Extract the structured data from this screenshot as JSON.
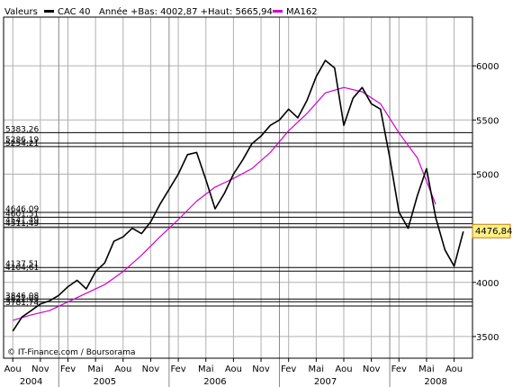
{
  "legend": {
    "prefix": "Valeurs",
    "main": "CAC 40",
    "stats": "Année +Bas: 4002,87 +Haut: 5665,94",
    "ma": "MA162"
  },
  "credit": "© IT-Finance.com / Boursorama",
  "last_value_label": "4476,84",
  "colors": {
    "price": "#000000",
    "ma": "#d000d0",
    "grid": "#b0b0b0",
    "frame": "#000000"
  },
  "chart_data": {
    "type": "line",
    "series": [
      {
        "name": "CAC 40",
        "x": [
          "2004-08",
          "2004-09",
          "2004-10",
          "2004-11",
          "2004-12",
          "2005-01",
          "2005-02",
          "2005-03",
          "2005-04",
          "2005-05",
          "2005-06",
          "2005-07",
          "2005-08",
          "2005-09",
          "2005-10",
          "2005-11",
          "2005-12",
          "2006-01",
          "2006-02",
          "2006-03",
          "2006-04",
          "2006-05",
          "2006-06",
          "2006-07",
          "2006-08",
          "2006-09",
          "2006-10",
          "2006-11",
          "2006-12",
          "2007-01",
          "2007-02",
          "2007-03",
          "2007-04",
          "2007-05",
          "2007-06",
          "2007-07",
          "2007-08",
          "2007-09",
          "2007-10",
          "2007-11",
          "2007-12",
          "2008-01",
          "2008-02",
          "2008-03",
          "2008-04",
          "2008-05",
          "2008-06",
          "2008-07",
          "2008-08",
          "2008-09"
        ],
        "values": [
          3550,
          3680,
          3740,
          3800,
          3830,
          3880,
          3960,
          4020,
          3940,
          4100,
          4180,
          4380,
          4420,
          4500,
          4450,
          4560,
          4720,
          4860,
          5000,
          5180,
          5200,
          4950,
          4680,
          4820,
          5000,
          5130,
          5280,
          5350,
          5450,
          5500,
          5600,
          5520,
          5680,
          5900,
          6050,
          5980,
          5450,
          5700,
          5800,
          5650,
          5600,
          5150,
          4650,
          4500,
          4800,
          5050,
          4600,
          4300,
          4150,
          4470
        ]
      },
      {
        "name": "MA162",
        "x": [
          "2004-08",
          "2004-10",
          "2004-12",
          "2005-02",
          "2005-04",
          "2005-06",
          "2005-08",
          "2005-10",
          "2005-12",
          "2006-02",
          "2006-04",
          "2006-06",
          "2006-08",
          "2006-10",
          "2006-12",
          "2007-02",
          "2007-04",
          "2007-06",
          "2007-08",
          "2007-10",
          "2007-12",
          "2008-02",
          "2008-04",
          "2008-06"
        ],
        "values": [
          3650,
          3700,
          3740,
          3820,
          3900,
          3980,
          4100,
          4250,
          4420,
          4580,
          4750,
          4880,
          4960,
          5050,
          5200,
          5400,
          5560,
          5750,
          5800,
          5760,
          5650,
          5380,
          5150,
          4720
        ]
      }
    ],
    "levels": [
      {
        "label": "5383,26",
        "value": 5383.26
      },
      {
        "label": "5286,19",
        "value": 5286.19
      },
      {
        "label": "5254,21",
        "value": 5254.21
      },
      {
        "label": "4646,09",
        "value": 4646.09
      },
      {
        "label": "4601,51",
        "value": 4601.51
      },
      {
        "label": "4541,49",
        "value": 4541.49
      },
      {
        "label": "4511,49",
        "value": 4511.49
      },
      {
        "label": "4137,51",
        "value": 4137.51
      },
      {
        "label": "4104,61",
        "value": 4104.61
      },
      {
        "label": "3846,08",
        "value": 3846.08
      },
      {
        "label": "3821,08",
        "value": 3821.08
      },
      {
        "label": "3781,74",
        "value": 3781.74
      }
    ],
    "yticks": [
      3500,
      4000,
      4500,
      5000,
      5500,
      6000
    ],
    "ytick_labels": [
      "3500",
      "4000",
      "4500",
      "5000",
      "5500",
      "6000"
    ],
    "ylim": [
      3300,
      6450
    ],
    "xticks": [
      {
        "label": "Aou",
        "x": "2004-08"
      },
      {
        "label": "Nov",
        "x": "2004-11"
      },
      {
        "label": "Fev",
        "x": "2005-02"
      },
      {
        "label": "Mai",
        "x": "2005-05"
      },
      {
        "label": "Aou",
        "x": "2005-08"
      },
      {
        "label": "Nov",
        "x": "2005-11"
      },
      {
        "label": "Fev",
        "x": "2006-02"
      },
      {
        "label": "Mai",
        "x": "2006-05"
      },
      {
        "label": "Aou",
        "x": "2006-08"
      },
      {
        "label": "Nov",
        "x": "2006-11"
      },
      {
        "label": "Fev",
        "x": "2007-02"
      },
      {
        "label": "Mai",
        "x": "2007-05"
      },
      {
        "label": "Aou",
        "x": "2007-08"
      },
      {
        "label": "Nov",
        "x": "2007-11"
      },
      {
        "label": "Fev",
        "x": "2008-02"
      },
      {
        "label": "Mai",
        "x": "2008-05"
      },
      {
        "label": "Aou",
        "x": "2008-08"
      }
    ],
    "years": [
      {
        "label": "2004",
        "x": "2004-10"
      },
      {
        "label": "2005",
        "x": "2005-06"
      },
      {
        "label": "2006",
        "x": "2006-06"
      },
      {
        "label": "2007",
        "x": "2007-06"
      },
      {
        "label": "2008",
        "x": "2008-06"
      }
    ],
    "year_separators": [
      "2005-01",
      "2006-01",
      "2007-01",
      "2008-01"
    ],
    "xlim": [
      "2004-07",
      "2008-10"
    ],
    "grid": true,
    "legend_position": "top-left"
  }
}
